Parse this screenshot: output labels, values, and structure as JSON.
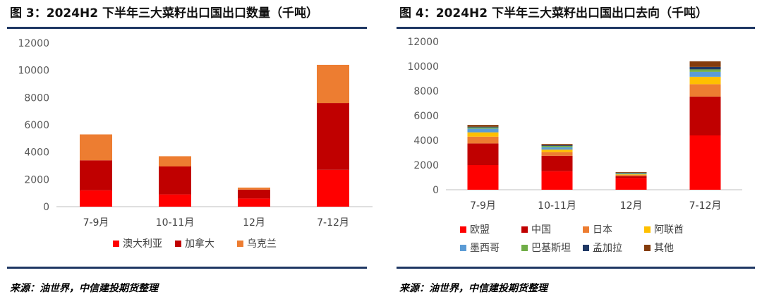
{
  "chart_data": [
    {
      "type": "bar",
      "stacked": true,
      "title": "图 3：2024H2 下半年三大菜籽出口国出口数量（千吨）",
      "categories": [
        "7-9月",
        "10-11月",
        "12月",
        "7-12月"
      ],
      "ylim": [
        0,
        12000
      ],
      "yticks": [
        0,
        2000,
        4000,
        6000,
        8000,
        10000,
        12000
      ],
      "grid": false,
      "legend_position": "bottom",
      "series": [
        {
          "name": "澳大利亚",
          "color": "#ff0000",
          "values": [
            1200,
            900,
            600,
            2700
          ]
        },
        {
          "name": "加拿大",
          "color": "#c00000",
          "values": [
            2200,
            2050,
            650,
            4900
          ]
        },
        {
          "name": "乌克兰",
          "color": "#ed7d31",
          "values": [
            1900,
            750,
            150,
            2800
          ]
        }
      ],
      "source": "来源：油世界，中信建投期货整理"
    },
    {
      "type": "bar",
      "stacked": true,
      "title": "图 4：2024H2 下半年三大菜籽出口国出口去向（千吨）",
      "categories": [
        "7-9月",
        "10-11月",
        "12月",
        "7-12月"
      ],
      "ylim": [
        0,
        12000
      ],
      "yticks": [
        0,
        2000,
        4000,
        6000,
        8000,
        10000,
        12000
      ],
      "grid": false,
      "legend_position": "bottom",
      "series": [
        {
          "name": "欧盟",
          "color": "#ff0000",
          "values": [
            2000,
            1500,
            950,
            4400
          ]
        },
        {
          "name": "中国",
          "color": "#c00000",
          "values": [
            1750,
            1250,
            150,
            3150
          ]
        },
        {
          "name": "日本",
          "color": "#ed7d31",
          "values": [
            550,
            300,
            100,
            1000
          ]
        },
        {
          "name": "阿联酋",
          "color": "#ffc000",
          "values": [
            350,
            200,
            50,
            600
          ]
        },
        {
          "name": "墨西哥",
          "color": "#5b9bd5",
          "values": [
            300,
            200,
            50,
            400
          ]
        },
        {
          "name": "巴基斯坦",
          "color": "#70ad47",
          "values": [
            100,
            100,
            50,
            200
          ]
        },
        {
          "name": "孟加拉",
          "color": "#1f3864",
          "values": [
            50,
            50,
            30,
            200
          ]
        },
        {
          "name": "其他",
          "color": "#843c0c",
          "values": [
            150,
            100,
            50,
            450
          ]
        }
      ],
      "source": "来源：油世界，中信建投期货整理"
    }
  ]
}
